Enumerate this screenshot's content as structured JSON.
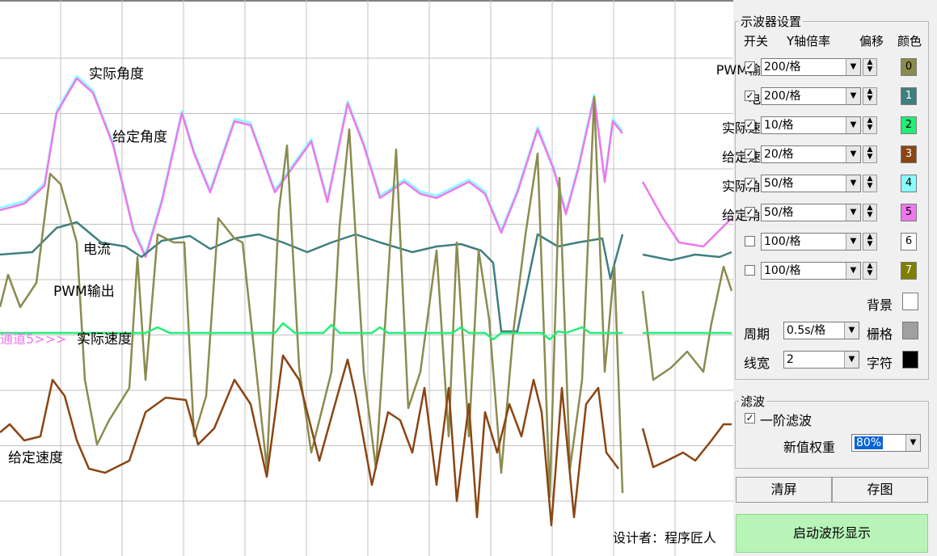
{
  "colors": {
    "pwm": "#8b8b4f",
    "current": "#3f7f7f",
    "actual_speed": "#22ee77",
    "given_speed": "#8b4513",
    "actual_angle": "#88ffff",
    "given_angle": "#ee77ee",
    "grid": "#c0c0c0",
    "start_button": "#b8f4b8"
  },
  "scope": {
    "labels": {
      "actual_angle": "实际角度",
      "given_angle": "给定角度",
      "current": "电流",
      "pwm": "PWM输出",
      "actual_speed": "实际速度",
      "channel5": "通道5>>>",
      "given_speed": "给定速度"
    },
    "designer": "设计者：程序匠人"
  },
  "panel": {
    "group_title": "示波器设置",
    "headers": {
      "switch": "开关",
      "yscale": "Y轴倍率",
      "offset": "偏移",
      "color": "颜色"
    },
    "channels": [
      {
        "name": "PWM输出",
        "checked": true,
        "check_mark": "✓",
        "scale": "200/格",
        "index": "0",
        "color": "#8b8b4f"
      },
      {
        "name": "电流",
        "checked": true,
        "check_mark": "✓",
        "scale": "200/格",
        "index": "1",
        "color": "#3f7f7f"
      },
      {
        "name": "实际速度",
        "checked": true,
        "check_mark": "✓",
        "scale": "10/格",
        "index": "2",
        "color": "#22ee77"
      },
      {
        "name": "给定速度",
        "checked": true,
        "check_mark": "✓",
        "scale": "20/格",
        "index": "3",
        "color": "#8b4513"
      },
      {
        "name": "实际角度",
        "checked": true,
        "check_mark": "✓",
        "scale": "50/格",
        "index": "4",
        "color": "#88ffff"
      },
      {
        "name": "给定角度",
        "checked": true,
        "check_mark": "✓",
        "scale": "50/格",
        "index": "5",
        "color": "#ee77ee"
      },
      {
        "name": "",
        "checked": false,
        "check_mark": "",
        "scale": "100/格",
        "index": "6",
        "color": "#ffffff"
      },
      {
        "name": "",
        "checked": false,
        "check_mark": "",
        "scale": "100/格",
        "index": "7",
        "color": "#7f7f00"
      }
    ],
    "background_label": "背景",
    "background_color": "#ffffff",
    "period_label": "周期",
    "period_value": "0.5s/格",
    "grid_label": "栅格",
    "grid_color": "#a0a0a0",
    "linewidth_label": "线宽",
    "linewidth_value": "2",
    "font_label": "字符",
    "font_color": "#000000",
    "filter_title": "滤波",
    "filter_first_order": "一阶滤波",
    "filter_checked": true,
    "weight_label": "新值权重",
    "weight_value": "80%",
    "clear_button": "清屏",
    "save_button": "存图",
    "start_button": "启动波形显示"
  }
}
